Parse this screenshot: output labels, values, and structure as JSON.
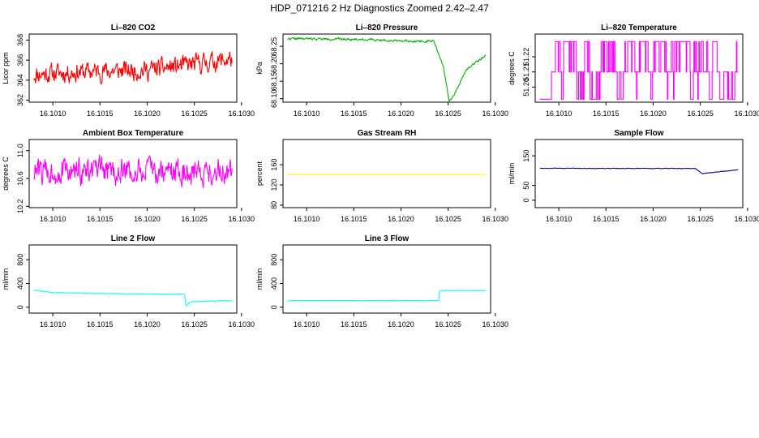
{
  "figure_title": "HDP_071216  2 Hz Diagnostics Zoomed 2.42–2.47",
  "chart_data": [
    {
      "type": "line",
      "title": "Li–820 CO2",
      "ylabel": "Licor ppm",
      "color": "#ff0000",
      "ylim": [
        361.8,
        368.6
      ],
      "yticks": [
        362,
        364,
        366,
        368
      ],
      "ytick_labels": [
        "362",
        "364",
        "366",
        "368"
      ],
      "xlim": [
        16.10075,
        16.10295
      ],
      "xticks": [
        16.101,
        16.1015,
        16.102,
        16.1025,
        16.103
      ],
      "xtick_labels": [
        "16.1010",
        "16.1015",
        "16.1020",
        "16.1025",
        "16.1030"
      ],
      "style": "noisy",
      "x_start": 16.1008,
      "x_end": 16.1029,
      "base": [
        [
          16.1008,
          364.6
        ],
        [
          16.1015,
          364.9
        ],
        [
          16.102,
          365.0
        ],
        [
          16.1025,
          365.6
        ],
        [
          16.1029,
          366.1
        ]
      ],
      "noise": 1.1,
      "clip": [
        362.0,
        368.4
      ],
      "seed": 11
    },
    {
      "type": "line",
      "title": "Li–820 Pressure",
      "ylabel": "kPa",
      "color": "#00b000",
      "ylim": [
        68.09,
        68.285
      ],
      "yticks": [
        68.1,
        68.15,
        68.2,
        68.25
      ],
      "ytick_labels": [
        "68.10",
        "68.15",
        "68.20",
        "68.25"
      ],
      "xlim": [
        16.10075,
        16.10295
      ],
      "xticks": [
        16.101,
        16.1015,
        16.102,
        16.1025,
        16.103
      ],
      "xtick_labels": [
        "16.1010",
        "16.1015",
        "16.1020",
        "16.1025",
        "16.1030"
      ],
      "style": "noisy",
      "x_start": 16.1008,
      "x_end": 16.1029,
      "base": [
        [
          16.1008,
          68.272
        ],
        [
          16.1015,
          68.27
        ],
        [
          16.1023,
          68.264
        ],
        [
          16.10235,
          68.265
        ],
        [
          16.10245,
          68.19
        ],
        [
          16.10251,
          68.094
        ],
        [
          16.10256,
          68.11
        ],
        [
          16.1027,
          68.185
        ],
        [
          16.1029,
          68.225
        ]
      ],
      "noise": 0.0035,
      "clip": [
        68.09,
        68.285
      ],
      "seed": 22
    },
    {
      "type": "line",
      "title": "Li–820 Temperature",
      "ylabel": "degrees C",
      "color": "#ff00ff",
      "ylim": [
        51.19,
        51.235
      ],
      "yticks": [
        51.2,
        51.21,
        51.22
      ],
      "ytick_labels": [
        "51.20",
        "51.21",
        "51.22"
      ],
      "xlim": [
        16.10075,
        16.10295
      ],
      "xticks": [
        16.101,
        16.1015,
        16.102,
        16.1025,
        16.103
      ],
      "xtick_labels": [
        "16.1010",
        "16.1015",
        "16.1020",
        "16.1025",
        "16.1030"
      ],
      "style": "steps",
      "x_start": 16.1008,
      "x_end": 16.1029,
      "levels": [
        51.192,
        51.21,
        51.23
      ],
      "seed": 33
    },
    {
      "type": "line",
      "title": "Ambient Box Temperature",
      "ylabel": "degrees C",
      "color": "#ff00ff",
      "ylim": [
        10.18,
        11.16
      ],
      "yticks": [
        10.2,
        10.6,
        11.0
      ],
      "ytick_labels": [
        "10.2",
        "10.6",
        "11.0"
      ],
      "xlim": [
        16.10075,
        16.10295
      ],
      "xticks": [
        16.101,
        16.1015,
        16.102,
        16.1025,
        16.103
      ],
      "xtick_labels": [
        "16.1010",
        "16.1015",
        "16.1020",
        "16.1025",
        "16.1030"
      ],
      "style": "noisy",
      "x_start": 16.1008,
      "x_end": 16.1029,
      "base": [
        [
          16.1008,
          10.7
        ],
        [
          16.1029,
          10.7
        ]
      ],
      "noise": 0.22,
      "clip": [
        10.2,
        11.15
      ],
      "seed": 44
    },
    {
      "type": "line",
      "title": "Gas Stream RH",
      "ylabel": "percent",
      "color": "#ffff00",
      "ylim": [
        75,
        210
      ],
      "yticks": [
        80,
        120,
        160
      ],
      "ytick_labels": [
        "80",
        "120",
        "160"
      ],
      "xlim": [
        16.10075,
        16.10295
      ],
      "xticks": [
        16.101,
        16.1015,
        16.102,
        16.1025,
        16.103
      ],
      "xtick_labels": [
        "16.1010",
        "16.1015",
        "16.1020",
        "16.1025",
        "16.1030"
      ],
      "style": "flat",
      "x_start": 16.1008,
      "x_end": 16.1029,
      "value": 140
    },
    {
      "type": "line",
      "title": "Sample Flow",
      "ylabel": "ml/min",
      "color": "#0000a0",
      "ylim": [
        -25,
        205
      ],
      "yticks": [
        0,
        50,
        150
      ],
      "ytick_labels": [
        "0",
        "50",
        "150"
      ],
      "xlim": [
        16.10075,
        16.10295
      ],
      "xticks": [
        16.101,
        16.1015,
        16.102,
        16.1025,
        16.103
      ],
      "xtick_labels": [
        "16.1010",
        "16.1015",
        "16.1020",
        "16.1025",
        "16.1030"
      ],
      "style": "noisy",
      "x_start": 16.1008,
      "x_end": 16.1029,
      "base": [
        [
          16.1008,
          108
        ],
        [
          16.10245,
          107
        ],
        [
          16.10252,
          90
        ],
        [
          16.1029,
          103
        ]
      ],
      "noise": 1.0,
      "clip": [
        -25,
        205
      ],
      "seed": 55
    },
    {
      "type": "line",
      "title": "Line 2 Flow",
      "ylabel": "ml/min",
      "color": "#00ffff",
      "ylim": [
        -100,
        1050
      ],
      "yticks": [
        0,
        400,
        800
      ],
      "ytick_labels": [
        "0",
        "400",
        "800"
      ],
      "xlim": [
        16.10075,
        16.10295
      ],
      "xticks": [
        16.101,
        16.1015,
        16.102,
        16.1025,
        16.103
      ],
      "xtick_labels": [
        "16.1010",
        "16.1015",
        "16.1020",
        "16.1025",
        "16.1030"
      ],
      "style": "noisy",
      "x_start": 16.1008,
      "x_end": 16.1029,
      "base": [
        [
          16.1008,
          290
        ],
        [
          16.101,
          245
        ],
        [
          16.1015,
          230
        ],
        [
          16.1024,
          220
        ],
        [
          16.10241,
          20
        ],
        [
          16.10247,
          95
        ],
        [
          16.1029,
          110
        ]
      ],
      "noise": 6,
      "clip": [
        -100,
        1050
      ],
      "seed": 66
    },
    {
      "type": "line",
      "title": "Line 3 Flow",
      "ylabel": "ml/min",
      "color": "#00ffff",
      "ylim": [
        -100,
        1050
      ],
      "yticks": [
        0,
        400,
        800
      ],
      "ytick_labels": [
        "0",
        "400",
        "800"
      ],
      "xlim": [
        16.10075,
        16.10295
      ],
      "xticks": [
        16.101,
        16.1015,
        16.102,
        16.1025,
        16.103
      ],
      "xtick_labels": [
        "16.1010",
        "16.1015",
        "16.1020",
        "16.1025",
        "16.1030"
      ],
      "style": "noisy",
      "x_start": 16.1008,
      "x_end": 16.1029,
      "base": [
        [
          16.1008,
          110
        ],
        [
          16.1024,
          110
        ],
        [
          16.10241,
          280
        ],
        [
          16.1029,
          280
        ]
      ],
      "noise": 5,
      "clip": [
        -100,
        1050
      ],
      "seed": 77
    }
  ]
}
